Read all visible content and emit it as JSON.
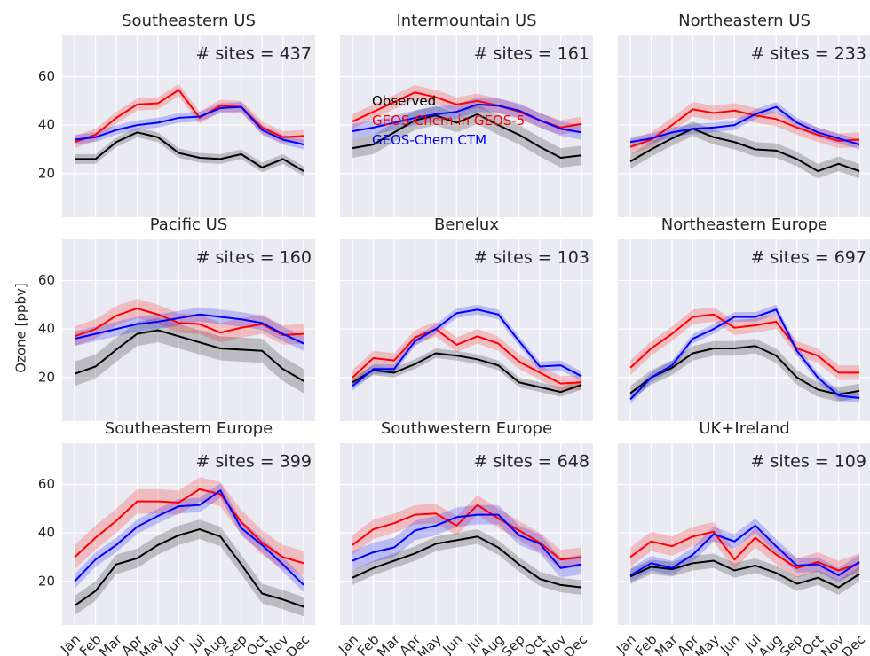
{
  "ylabel": "Ozone [ppbv]",
  "chart_data": [
    {
      "type": "line",
      "title": "Southeastern US",
      "annotation": "# sites = 437",
      "categories": [
        "Jan",
        "Feb",
        "Mar",
        "Apr",
        "May",
        "Jun",
        "Jul",
        "Aug",
        "Sep",
        "Oct",
        "Nov",
        "Dec"
      ],
      "ylim": [
        2,
        77
      ],
      "yticks": [
        20,
        40,
        60
      ],
      "grid": true,
      "series": [
        {
          "name": "Observed",
          "color": "#000000",
          "values": [
            26,
            26,
            33,
            37,
            35,
            28.5,
            26.5,
            26,
            28,
            22.5,
            26,
            21
          ],
          "errors": [
            2,
            2,
            2,
            2,
            2,
            2,
            2,
            2,
            2,
            2,
            2,
            2
          ]
        },
        {
          "name": "GEOS-Chem in GEOS-5",
          "color": "#ff0000",
          "values": [
            33,
            36,
            43,
            48.5,
            49,
            54.5,
            43,
            48,
            47.5,
            39,
            35,
            35.5
          ],
          "errors": [
            2.5,
            2.5,
            2.5,
            2.5,
            2.5,
            2.5,
            2.5,
            2.5,
            2.5,
            2.5,
            2.5,
            2.5
          ]
        },
        {
          "name": "GEOS-Chem CTM",
          "color": "#0000ff",
          "values": [
            34,
            35,
            38,
            40,
            41,
            43,
            43.5,
            47,
            47.5,
            38,
            34,
            32
          ],
          "errors": [
            2,
            2,
            2,
            2,
            2,
            2,
            2,
            2,
            2,
            2,
            2,
            2
          ]
        }
      ]
    },
    {
      "type": "line",
      "title": "Intermountain US",
      "annotation": "# sites = 161",
      "categories": [
        "Jan",
        "Feb",
        "Mar",
        "Apr",
        "May",
        "Jun",
        "Jul",
        "Aug",
        "Sep",
        "Oct",
        "Nov",
        "Dec"
      ],
      "ylim": [
        2,
        77
      ],
      "yticks": [
        20,
        40,
        60
      ],
      "grid": true,
      "legend": "center-left",
      "series": [
        {
          "name": "Observed",
          "color": "#000000",
          "values": [
            30.5,
            32,
            37,
            42,
            44,
            41,
            44.5,
            40,
            36,
            31,
            26.5,
            27.5
          ],
          "errors": [
            4,
            4,
            4,
            4,
            4,
            4,
            4,
            4,
            4,
            4,
            4,
            4
          ]
        },
        {
          "name": "GEOS-Chem in GEOS-5",
          "color": "#ff0000",
          "values": [
            41.5,
            45.5,
            49.5,
            53.5,
            51.5,
            48.5,
            50,
            48,
            45.5,
            42,
            39,
            40.5
          ],
          "errors": [
            3,
            3,
            3,
            3,
            3,
            3,
            3,
            3,
            3,
            3,
            3,
            3
          ]
        },
        {
          "name": "GEOS-Chem CTM",
          "color": "#0000ff",
          "values": [
            37.5,
            39,
            41,
            43,
            44.5,
            45.5,
            48.5,
            48,
            46,
            42,
            38.5,
            37
          ],
          "errors": [
            3,
            3,
            3,
            3,
            3,
            3,
            3,
            3,
            3,
            3,
            3,
            3
          ]
        }
      ]
    },
    {
      "type": "line",
      "title": "Northeastern US",
      "annotation": "# sites = 233",
      "categories": [
        "Jan",
        "Feb",
        "Mar",
        "Apr",
        "May",
        "Jun",
        "Jul",
        "Aug",
        "Sep",
        "Oct",
        "Nov",
        "Dec"
      ],
      "ylim": [
        2,
        77
      ],
      "yticks": [
        20,
        40,
        60
      ],
      "grid": true,
      "series": [
        {
          "name": "Observed",
          "color": "#000000",
          "values": [
            25,
            30,
            34.5,
            38.5,
            35,
            33,
            30,
            29.5,
            26,
            21,
            24,
            21
          ],
          "errors": [
            3,
            3,
            3,
            3,
            3,
            3,
            3,
            3,
            3,
            3,
            3,
            3
          ]
        },
        {
          "name": "GEOS-Chem in GEOS-5",
          "color": "#ff0000",
          "values": [
            31,
            34,
            40,
            46.5,
            45,
            46,
            44,
            42.5,
            39,
            36,
            33.5,
            34
          ],
          "errors": [
            3,
            3,
            3,
            3,
            3,
            3,
            3,
            3,
            3,
            3,
            3,
            3
          ]
        },
        {
          "name": "GEOS-Chem CTM",
          "color": "#0000ff",
          "values": [
            33,
            34.5,
            37,
            38.5,
            39,
            40,
            44.5,
            47.5,
            41,
            37,
            34.5,
            32
          ],
          "errors": [
            2,
            2,
            2,
            2,
            2,
            2,
            2,
            2,
            2,
            2,
            2,
            2
          ]
        }
      ]
    },
    {
      "type": "line",
      "title": "Pacific US",
      "annotation": "# sites = 160",
      "categories": [
        "Jan",
        "Feb",
        "Mar",
        "Apr",
        "May",
        "Jun",
        "Jul",
        "Aug",
        "Sep",
        "Oct",
        "Nov",
        "Dec"
      ],
      "ylim": [
        2,
        77
      ],
      "yticks": [
        20,
        40,
        60
      ],
      "grid": true,
      "series": [
        {
          "name": "Observed",
          "color": "#000000",
          "values": [
            21.5,
            24.5,
            31.5,
            38,
            39.5,
            37,
            34.5,
            32,
            31.5,
            31,
            23.5,
            18.5
          ],
          "errors": [
            5,
            5,
            5,
            5,
            5,
            5,
            5,
            5,
            5,
            5,
            5,
            5
          ]
        },
        {
          "name": "GEOS-Chem in GEOS-5",
          "color": "#ff0000",
          "values": [
            37,
            40,
            45.5,
            48.5,
            46,
            42.5,
            42,
            38.5,
            40.5,
            42,
            37.5,
            38
          ],
          "errors": [
            4,
            4,
            4,
            4,
            4,
            4,
            4,
            4,
            4,
            4,
            4,
            4
          ]
        },
        {
          "name": "GEOS-Chem CTM",
          "color": "#0000ff",
          "values": [
            36,
            38,
            40,
            42,
            43,
            44.5,
            46,
            45,
            44,
            42.5,
            38,
            34
          ],
          "errors": [
            3,
            3,
            3,
            3,
            3,
            3,
            3,
            3,
            3,
            3,
            3,
            3
          ]
        }
      ]
    },
    {
      "type": "line",
      "title": "Benelux",
      "annotation": "# sites = 103",
      "categories": [
        "Jan",
        "Feb",
        "Mar",
        "Apr",
        "May",
        "Jun",
        "Jul",
        "Aug",
        "Sep",
        "Oct",
        "Nov",
        "Dec"
      ],
      "ylim": [
        2,
        77
      ],
      "yticks": [
        20,
        40,
        60
      ],
      "grid": true,
      "series": [
        {
          "name": "Observed",
          "color": "#000000",
          "values": [
            18,
            23,
            22,
            25.5,
            30,
            29,
            27.5,
            25,
            18,
            16,
            14,
            17
          ],
          "errors": [
            2,
            2,
            2,
            2,
            2,
            2,
            2,
            2,
            2,
            2,
            2,
            2
          ]
        },
        {
          "name": "GEOS-Chem in GEOS-5",
          "color": "#ff0000",
          "values": [
            20,
            28,
            27,
            36.5,
            40,
            33.5,
            37,
            34,
            26.5,
            22,
            17.5,
            18
          ],
          "errors": [
            3,
            3,
            3,
            3,
            3,
            3,
            3,
            3,
            3,
            3,
            3,
            3
          ]
        },
        {
          "name": "GEOS-Chem CTM",
          "color": "#0000ff",
          "values": [
            16.5,
            23.5,
            23.5,
            35,
            40,
            46.5,
            48,
            46,
            35,
            24.5,
            25,
            20.5
          ],
          "errors": [
            2,
            2,
            2,
            2,
            2,
            2,
            2,
            2,
            2,
            2,
            2,
            2
          ]
        }
      ]
    },
    {
      "type": "line",
      "title": "Northeastern Europe",
      "annotation": "# sites = 697",
      "categories": [
        "Jan",
        "Feb",
        "Mar",
        "Apr",
        "May",
        "Jun",
        "Jul",
        "Aug",
        "Sep",
        "Oct",
        "Nov",
        "Dec"
      ],
      "ylim": [
        2,
        77
      ],
      "yticks": [
        20,
        40,
        60
      ],
      "grid": true,
      "series": [
        {
          "name": "Observed",
          "color": "#000000",
          "values": [
            13.5,
            20,
            24,
            30,
            32,
            32,
            33,
            29,
            20,
            15,
            13,
            14.5
          ],
          "errors": [
            3,
            3,
            3,
            3,
            3,
            3,
            3,
            3,
            3,
            3,
            3,
            3
          ]
        },
        {
          "name": "GEOS-Chem in GEOS-5",
          "color": "#ff0000",
          "values": [
            24,
            32,
            38,
            45,
            46,
            40.5,
            41.5,
            43,
            32,
            29,
            22,
            22
          ],
          "errors": [
            3,
            3,
            3,
            3,
            3,
            3,
            3,
            3,
            3,
            3,
            3,
            3
          ]
        },
        {
          "name": "GEOS-Chem CTM",
          "color": "#0000ff",
          "values": [
            11,
            20,
            25,
            36,
            40,
            45,
            45,
            48,
            31,
            20,
            12.5,
            11.5
          ],
          "errors": [
            2,
            2,
            2,
            2,
            2,
            2,
            2,
            2,
            2,
            2,
            2,
            2
          ]
        }
      ]
    },
    {
      "type": "line",
      "title": "Southeastern Europe",
      "annotation": "# sites = 399",
      "categories": [
        "Jan",
        "Feb",
        "Mar",
        "Apr",
        "May",
        "Jun",
        "Jul",
        "Aug",
        "Sep",
        "Oct",
        "Nov",
        "Dec"
      ],
      "ylim": [
        2,
        77
      ],
      "yticks": [
        20,
        40,
        60
      ],
      "grid": true,
      "series": [
        {
          "name": "Observed",
          "color": "#000000",
          "values": [
            10,
            16,
            27,
            29.5,
            35,
            39,
            41.5,
            38.5,
            27,
            15,
            12.5,
            9.5
          ],
          "errors": [
            4,
            4,
            4,
            4,
            4,
            4,
            4,
            4,
            4,
            4,
            4,
            4
          ]
        },
        {
          "name": "GEOS-Chem in GEOS-5",
          "color": "#ff0000",
          "values": [
            30,
            38,
            45,
            53,
            53,
            52.5,
            58,
            56,
            44.5,
            36,
            30,
            27.5
          ],
          "errors": [
            5,
            5,
            5,
            5,
            5,
            5,
            5,
            5,
            5,
            5,
            5,
            5
          ]
        },
        {
          "name": "GEOS-Chem CTM",
          "color": "#0000ff",
          "values": [
            20,
            29,
            35,
            42.5,
            47,
            51,
            51.5,
            57.5,
            42,
            35,
            27,
            18.5
          ],
          "errors": [
            3,
            3,
            3,
            3,
            3,
            3,
            3,
            3,
            3,
            3,
            3,
            3
          ]
        }
      ]
    },
    {
      "type": "line",
      "title": "Southwestern Europe",
      "annotation": "# sites = 648",
      "categories": [
        "Jan",
        "Feb",
        "Mar",
        "Apr",
        "May",
        "Jun",
        "Jul",
        "Aug",
        "Sep",
        "Oct",
        "Nov",
        "Dec"
      ],
      "ylim": [
        2,
        77
      ],
      "yticks": [
        20,
        40,
        60
      ],
      "grid": true,
      "series": [
        {
          "name": "Observed",
          "color": "#000000",
          "values": [
            21.5,
            25.5,
            28.5,
            31.5,
            35.5,
            37,
            38.5,
            34,
            27,
            21,
            18.5,
            17.5
          ],
          "errors": [
            3,
            3,
            3,
            3,
            3,
            3,
            3,
            3,
            3,
            3,
            3,
            3
          ]
        },
        {
          "name": "GEOS-Chem in GEOS-5",
          "color": "#ff0000",
          "values": [
            35,
            41.5,
            44,
            47.5,
            48,
            43,
            51.5,
            46,
            41,
            36,
            29,
            30
          ],
          "errors": [
            4,
            4,
            4,
            4,
            4,
            4,
            4,
            4,
            4,
            4,
            4,
            4
          ]
        },
        {
          "name": "GEOS-Chem CTM",
          "color": "#0000ff",
          "values": [
            28.5,
            32,
            34,
            41,
            43,
            46.5,
            47.5,
            47.5,
            39,
            35.5,
            25.5,
            27
          ],
          "errors": [
            4,
            4,
            4,
            4,
            4,
            4,
            4,
            4,
            4,
            4,
            4,
            4
          ]
        }
      ]
    },
    {
      "type": "line",
      "title": "UK+Ireland",
      "annotation": "# sites = 109",
      "categories": [
        "Jan",
        "Feb",
        "Mar",
        "Apr",
        "May",
        "Jun",
        "Jul",
        "Aug",
        "Sep",
        "Oct",
        "Nov",
        "Dec"
      ],
      "ylim": [
        2,
        77
      ],
      "yticks": [
        20,
        40,
        60
      ],
      "grid": true,
      "series": [
        {
          "name": "Observed",
          "color": "#000000",
          "values": [
            22,
            26,
            25,
            27.5,
            28.5,
            24.5,
            26.5,
            23.5,
            19,
            21.5,
            17.5,
            23
          ],
          "errors": [
            3,
            3,
            3,
            3,
            3,
            3,
            3,
            3,
            3,
            3,
            3,
            3
          ]
        },
        {
          "name": "GEOS-Chem in GEOS-5",
          "color": "#ff0000",
          "values": [
            30,
            36.5,
            34.5,
            38.5,
            40.5,
            29,
            38,
            31,
            25.5,
            28,
            24.5,
            27.5
          ],
          "errors": [
            4,
            4,
            4,
            4,
            4,
            4,
            4,
            4,
            4,
            4,
            4,
            4
          ]
        },
        {
          "name": "GEOS-Chem CTM",
          "color": "#0000ff",
          "values": [
            22.5,
            27.5,
            25.5,
            31,
            39.5,
            36.5,
            43,
            34.5,
            26.5,
            27,
            22.5,
            28
          ],
          "errors": [
            3,
            3,
            3,
            3,
            3,
            3,
            3,
            3,
            3,
            3,
            3,
            3
          ]
        }
      ]
    }
  ]
}
